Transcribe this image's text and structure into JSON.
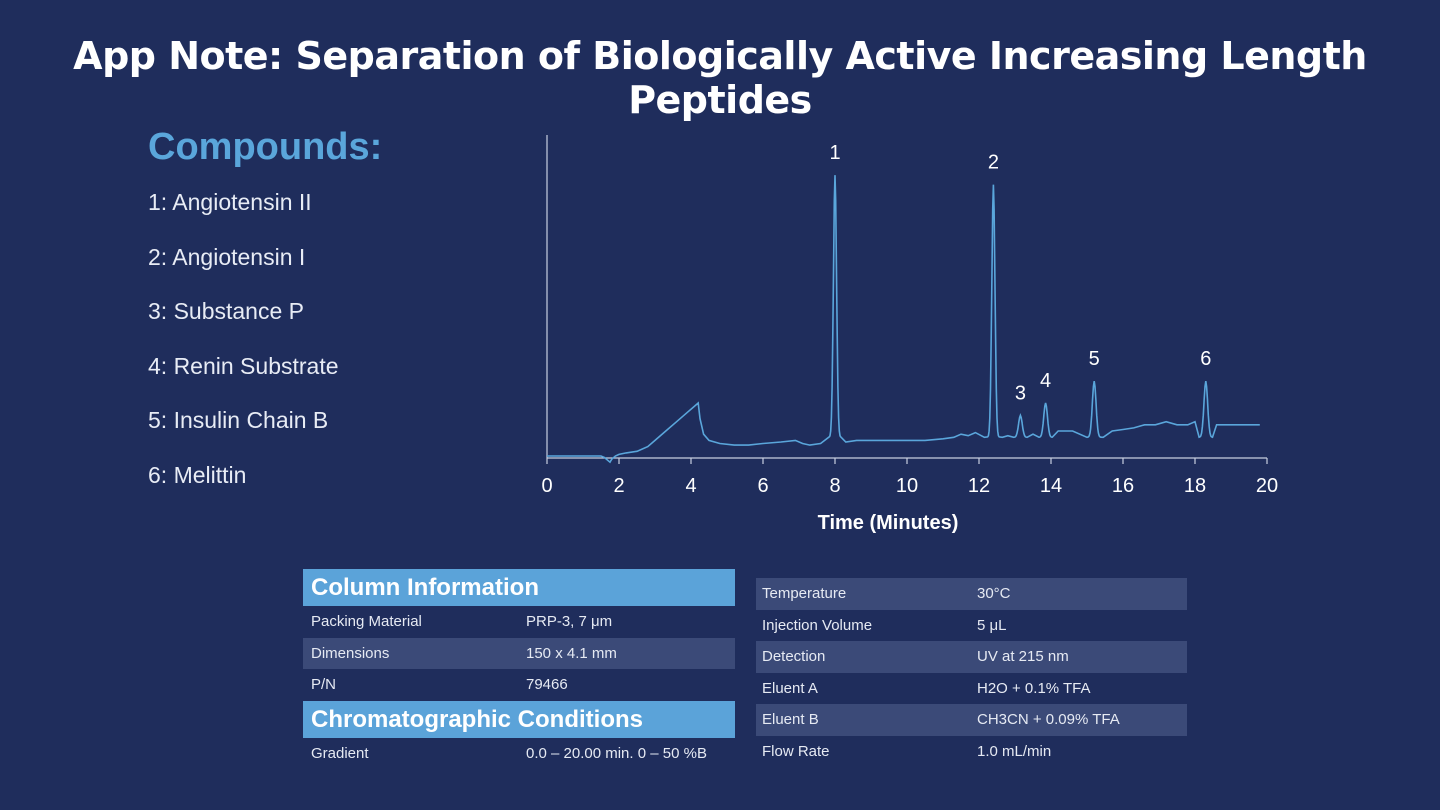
{
  "title": "App Note: Separation of Biologically Active Increasing Length Peptides",
  "compounds": {
    "heading": "Compounds:",
    "items": [
      "1: Angiotensin II",
      "2: Angiotensin I",
      "3: Substance P",
      "4: Renin Substrate",
      "5: Insulin Chain B",
      "6: Melittin"
    ]
  },
  "chart_data": {
    "type": "line",
    "title": "",
    "xlabel": "Time (Minutes)",
    "ylabel": "",
    "xlim": [
      0,
      20
    ],
    "ylim": [
      0,
      1
    ],
    "x_ticks": [
      0,
      2,
      4,
      6,
      8,
      10,
      12,
      14,
      16,
      18,
      20
    ],
    "grid": false,
    "line_color": "#5aa6db",
    "peaks": [
      {
        "label": "1",
        "time": 8.0,
        "height": 0.9
      },
      {
        "label": "2",
        "time": 12.4,
        "height": 0.87
      },
      {
        "label": "3",
        "time": 13.15,
        "height": 0.13
      },
      {
        "label": "4",
        "time": 13.85,
        "height": 0.17
      },
      {
        "label": "5",
        "time": 15.2,
        "height": 0.24
      },
      {
        "label": "6",
        "time": 18.3,
        "height": 0.24
      }
    ],
    "trace": {
      "x": [
        0,
        0.5,
        1.0,
        1.5,
        1.6,
        1.7,
        1.75,
        1.8,
        1.9,
        2.0,
        2.2,
        2.5,
        2.8,
        3.0,
        3.3,
        3.6,
        3.9,
        4.1,
        4.2,
        4.25,
        4.35,
        4.5,
        4.8,
        5.2,
        5.6,
        6.0,
        6.5,
        6.9,
        7.1,
        7.3,
        7.6,
        7.85,
        7.95,
        8.0,
        8.05,
        8.15,
        8.3,
        8.6,
        9.0,
        9.5,
        10.0,
        10.5,
        11.0,
        11.3,
        11.5,
        11.7,
        11.9,
        12.15,
        12.3,
        12.4,
        12.5,
        12.65,
        12.8,
        13.0,
        13.1,
        13.15,
        13.2,
        13.3,
        13.5,
        13.7,
        13.8,
        13.85,
        13.9,
        14.0,
        14.2,
        14.6,
        15.0,
        15.1,
        15.2,
        15.3,
        15.45,
        15.7,
        16.0,
        16.3,
        16.6,
        16.9,
        17.2,
        17.5,
        17.8,
        18.0,
        18.15,
        18.25,
        18.3,
        18.35,
        18.45,
        18.6,
        18.9,
        19.2,
        19.5,
        19.8
      ],
      "y": [
        0.0,
        0.0,
        0.0,
        0.0,
        -0.005,
        -0.015,
        -0.02,
        -0.01,
        0.0,
        0.005,
        0.01,
        0.015,
        0.03,
        0.05,
        0.08,
        0.11,
        0.14,
        0.16,
        0.17,
        0.12,
        0.07,
        0.05,
        0.04,
        0.035,
        0.035,
        0.04,
        0.045,
        0.05,
        0.04,
        0.035,
        0.04,
        0.04,
        0.5,
        0.9,
        0.5,
        0.05,
        0.045,
        0.05,
        0.05,
        0.05,
        0.05,
        0.05,
        0.055,
        0.06,
        0.07,
        0.065,
        0.075,
        0.09,
        0.5,
        0.87,
        0.5,
        0.07,
        0.065,
        0.07,
        0.1,
        0.13,
        0.1,
        0.07,
        0.07,
        0.07,
        0.12,
        0.17,
        0.12,
        0.08,
        0.08,
        0.08,
        0.08,
        0.15,
        0.24,
        0.15,
        0.09,
        0.08,
        0.085,
        0.09,
        0.1,
        0.1,
        0.11,
        0.1,
        0.1,
        0.11,
        0.16,
        0.24,
        0.23,
        0.17,
        0.11,
        0.1,
        0.1,
        0.1,
        0.1,
        0.1
      ]
    }
  },
  "column_info": {
    "heading": "Column Information",
    "rows": [
      {
        "label": "Packing Material",
        "value": "PRP-3, 7 μm"
      },
      {
        "label": "Dimensions",
        "value": "150 x 4.1 mm"
      },
      {
        "label": "P/N",
        "value": "79466"
      }
    ]
  },
  "conditions": {
    "heading": "Chromatographic Conditions",
    "rows": [
      {
        "label": "Gradient",
        "value": "0.0 – 20.00 min. 0 – 50 %B"
      }
    ]
  },
  "params": {
    "rows": [
      {
        "label": "Temperature",
        "value": "30°C"
      },
      {
        "label": "Injection Volume",
        "value": "5 μL"
      },
      {
        "label": "Detection",
        "value": "UV at 215 nm"
      },
      {
        "label": "Eluent A",
        "value": "H2O + 0.1% TFA"
      },
      {
        "label": "Eluent B",
        "value": "CH3CN + 0.09% TFA"
      },
      {
        "label": "Flow Rate",
        "value": "1.0 mL/min"
      }
    ]
  }
}
